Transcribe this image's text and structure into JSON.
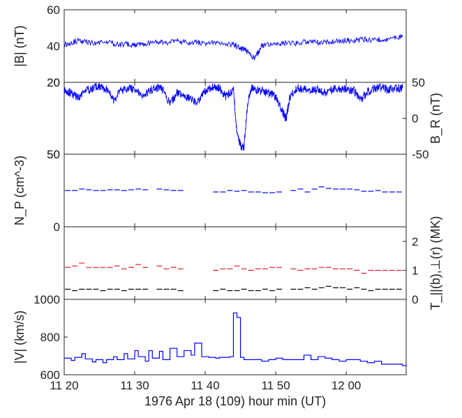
{
  "chart_data": [
    {
      "type": "line",
      "ylabel": "|B| (nT)",
      "x_range_min": [
        1280,
        1328.5
      ],
      "ylim": [
        20,
        60
      ],
      "left_ticks": [
        "60",
        "40",
        "20"
      ],
      "right_ticks": [],
      "series": [
        {
          "color": "#0000ff",
          "x": [
            1280,
            1282,
            1284,
            1286,
            1288,
            1290,
            1292,
            1294,
            1296,
            1298,
            1300,
            1302,
            1304,
            1305,
            1306,
            1307,
            1308,
            1310,
            1312,
            1314,
            1316,
            1318,
            1320,
            1322,
            1324,
            1326,
            1328
          ],
          "y": [
            41,
            43,
            41.5,
            42,
            41,
            40.5,
            41.5,
            42,
            42.5,
            42,
            41.5,
            41.5,
            41,
            39,
            37,
            33,
            40,
            41,
            41.5,
            42,
            42,
            42.5,
            43,
            43.5,
            43.5,
            44,
            45
          ]
        }
      ]
    },
    {
      "type": "line",
      "ylabel": "B_R (nT)",
      "right_axis": true,
      "x_range_min": [
        1280,
        1328.5
      ],
      "ylim": [
        -50,
        50
      ],
      "left_ticks": [
        "20",
        "50"
      ],
      "right_ticks": [
        "50",
        "0",
        "-50"
      ],
      "series": [
        {
          "color": "#0000ff",
          "x": [
            1280,
            1281,
            1282,
            1283,
            1284,
            1285,
            1286,
            1287,
            1288,
            1289,
            1290,
            1291,
            1292,
            1293,
            1294,
            1295,
            1296,
            1297,
            1298,
            1299,
            1300,
            1301,
            1302,
            1303,
            1304,
            1304.5,
            1305,
            1305.5,
            1306,
            1306.5,
            1307,
            1308,
            1309,
            1310,
            1311,
            1311.5,
            1312,
            1313,
            1314,
            1315,
            1316,
            1317,
            1318,
            1319,
            1320,
            1321,
            1322,
            1323,
            1324,
            1325,
            1326,
            1327,
            1328
          ],
          "y": [
            40,
            35,
            28,
            38,
            42,
            44,
            40,
            25,
            38,
            42,
            40,
            30,
            38,
            43,
            40,
            20,
            35,
            30,
            26,
            22,
            38,
            44,
            42,
            30,
            40,
            -20,
            -38,
            -40,
            20,
            42,
            40,
            38,
            35,
            30,
            8,
            0,
            30,
            42,
            41,
            38,
            40,
            36,
            40,
            42,
            39,
            40,
            25,
            37,
            42,
            43,
            40,
            42,
            42
          ]
        }
      ]
    },
    {
      "type": "line",
      "ylabel": "N_P (cm^-3)",
      "x_range_min": [
        1280,
        1328.5
      ],
      "ylim": [
        0,
        50
      ],
      "left_ticks": [
        "50",
        "0"
      ],
      "right_ticks": [],
      "series": [
        {
          "color": "#0000ff",
          "x": [
            1280.5,
            1281.5,
            1282.5,
            1283.5,
            1284.5,
            1285.5,
            1286.5,
            1287.5,
            1288.5,
            1289.5,
            1290.5,
            1291.5,
            1293.5,
            1294.5,
            1295.5,
            1296.5,
            1301.5,
            1302.5,
            1303.5,
            1304.5,
            1305.5,
            1306.5,
            1307.5,
            1308.5,
            1309.5,
            1310.5,
            1312.5,
            1313.5,
            1314.5,
            1315.5,
            1316.5,
            1317.5,
            1318.5,
            1319.5,
            1320.5,
            1321.5,
            1322.5,
            1323.5,
            1324.5,
            1325.5,
            1326.5,
            1327.5
          ],
          "y": [
            25,
            25,
            26,
            25.5,
            25,
            25,
            25.5,
            25.5,
            25,
            25.5,
            26,
            25.5,
            26,
            25.5,
            25,
            25,
            24,
            24,
            25,
            24.5,
            25,
            24,
            24,
            23.5,
            23.5,
            24,
            25,
            26,
            24,
            26,
            27.5,
            26.5,
            26,
            26,
            26,
            25.5,
            24.5,
            24.5,
            25,
            24,
            24,
            24
          ]
        }
      ]
    },
    {
      "type": "line",
      "ylabel": "T_||(b),⊥(r) (MK)",
      "right_axis": true,
      "x_range_min": [
        1280,
        1328.5
      ],
      "ylim": [
        0,
        2.5
      ],
      "left_ticks": [],
      "right_ticks": [
        "2",
        "1",
        "0"
      ],
      "series": [
        {
          "color": "#e32020",
          "x": [
            1280.5,
            1281.5,
            1282.5,
            1283.5,
            1284.5,
            1285.5,
            1286.5,
            1287.5,
            1288.5,
            1289.5,
            1290.5,
            1291.5,
            1293.5,
            1294.5,
            1295.5,
            1296.5,
            1301.5,
            1302.5,
            1303.5,
            1304.5,
            1305.5,
            1306.5,
            1307.5,
            1308.5,
            1309.5,
            1310.5,
            1312.5,
            1313.5,
            1314.5,
            1315.5,
            1316.5,
            1317.5,
            1318.5,
            1319.5,
            1320.5,
            1321.5,
            1322.5,
            1323.5,
            1324.5,
            1325.5,
            1326.5,
            1327.5
          ],
          "y": [
            1.1,
            1.15,
            1.25,
            1.1,
            1.1,
            1.1,
            1.1,
            1.15,
            1.05,
            1.1,
            1.2,
            1.1,
            1.15,
            1.05,
            1.1,
            1.05,
            1.0,
            1.05,
            1.05,
            1.15,
            1.05,
            1.0,
            1.05,
            1.05,
            1.1,
            1.1,
            1.05,
            1.0,
            1.05,
            1.05,
            1.1,
            1.1,
            1.05,
            1.05,
            1.05,
            1.0,
            0.9,
            1.0,
            1.0,
            1.0,
            1.0,
            1.0
          ]
        },
        {
          "color": "#000000",
          "x": [
            1280.5,
            1281.5,
            1282.5,
            1283.5,
            1284.5,
            1285.5,
            1286.5,
            1287.5,
            1288.5,
            1289.5,
            1290.5,
            1291.5,
            1293.5,
            1294.5,
            1295.5,
            1296.5,
            1301.5,
            1302.5,
            1303.5,
            1304.5,
            1305.5,
            1306.5,
            1307.5,
            1308.5,
            1309.5,
            1310.5,
            1312.5,
            1313.5,
            1314.5,
            1315.5,
            1316.5,
            1317.5,
            1318.5,
            1319.5,
            1320.5,
            1321.5,
            1322.5,
            1323.5,
            1324.5,
            1325.5,
            1326.5,
            1327.5
          ],
          "y": [
            0.35,
            0.3,
            0.35,
            0.35,
            0.35,
            0.3,
            0.35,
            0.35,
            0.3,
            0.35,
            0.35,
            0.35,
            0.35,
            0.35,
            0.35,
            0.3,
            0.3,
            0.35,
            0.3,
            0.3,
            0.35,
            0.3,
            0.3,
            0.35,
            0.3,
            0.35,
            0.35,
            0.35,
            0.4,
            0.35,
            0.4,
            0.45,
            0.4,
            0.4,
            0.35,
            0.4,
            0.35,
            0.3,
            0.35,
            0.35,
            0.35,
            0.35
          ]
        }
      ]
    },
    {
      "type": "line",
      "ylabel": "|V| (km/s)",
      "x_range_min": [
        1280,
        1328.5
      ],
      "ylim": [
        600,
        1100
      ],
      "left_ticks": [
        "1000",
        "800",
        "600"
      ],
      "right_ticks": [],
      "xtick_values": [
        1280,
        1290,
        1300,
        1310,
        1320
      ],
      "xtick_labels": [
        "11 20",
        "11 30",
        "11 40",
        "11 50",
        "12 00"
      ],
      "xlabel": "1976 Apr 18 (109)  hour min (UT)",
      "series": [
        {
          "color": "#0000ff",
          "step": true,
          "x": [
            1280,
            1281,
            1281.5,
            1282.5,
            1283,
            1284,
            1284.5,
            1285.5,
            1286,
            1287,
            1287.5,
            1288.5,
            1289,
            1290,
            1290.5,
            1291.5,
            1292,
            1292.5,
            1293.5,
            1294,
            1295,
            1296,
            1297,
            1298,
            1298.5,
            1299.5,
            1300.5,
            1301.5,
            1302,
            1303.5,
            1304,
            1304.5,
            1305,
            1305.5,
            1306.5,
            1307,
            1308,
            1309,
            1310,
            1311,
            1312,
            1313,
            1314,
            1315,
            1316,
            1317,
            1318,
            1319,
            1320,
            1321,
            1322,
            1323,
            1324,
            1325,
            1326,
            1327,
            1328,
            1328.5
          ],
          "y": [
            710,
            695,
            715,
            740,
            705,
            685,
            700,
            680,
            700,
            720,
            700,
            740,
            705,
            760,
            720,
            690,
            760,
            710,
            755,
            700,
            775,
            720,
            760,
            730,
            810,
            720,
            715,
            710,
            715,
            720,
            1010,
            980,
            715,
            700,
            700,
            700,
            690,
            700,
            710,
            700,
            700,
            700,
            730,
            700,
            720,
            710,
            700,
            690,
            700,
            700,
            690,
            680,
            690,
            670,
            670,
            670,
            660,
            670
          ]
        }
      ]
    }
  ]
}
